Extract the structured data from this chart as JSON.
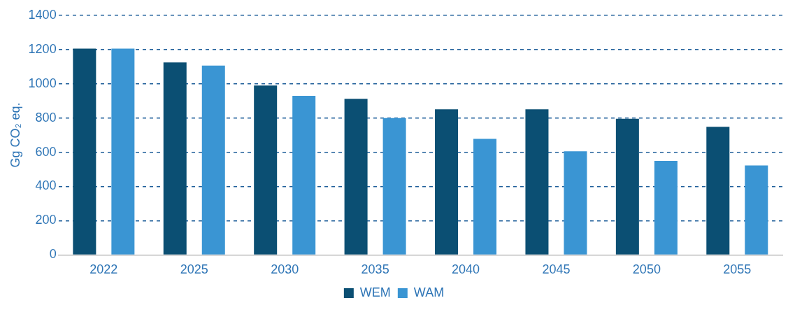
{
  "chart_data": {
    "type": "bar",
    "ylabel": "Gg CO₂ eq.",
    "categories": [
      "2022",
      "2025",
      "2030",
      "2035",
      "2040",
      "2045",
      "2050",
      "2055"
    ],
    "series": [
      {
        "name": "WEM",
        "color": "#0b4f73",
        "values": [
          1205,
          1124,
          990,
          912,
          851,
          851,
          795,
          748
        ]
      },
      {
        "name": "WAM",
        "color": "#3a95d3",
        "values": [
          1205,
          1106,
          929,
          800,
          678,
          605,
          549,
          523
        ]
      }
    ],
    "ylim": [
      0,
      1400
    ],
    "yticks": [
      0,
      200,
      400,
      600,
      800,
      1000,
      1200,
      1400
    ],
    "grid": "y",
    "line_style": "dashed",
    "legend": "bottom"
  }
}
